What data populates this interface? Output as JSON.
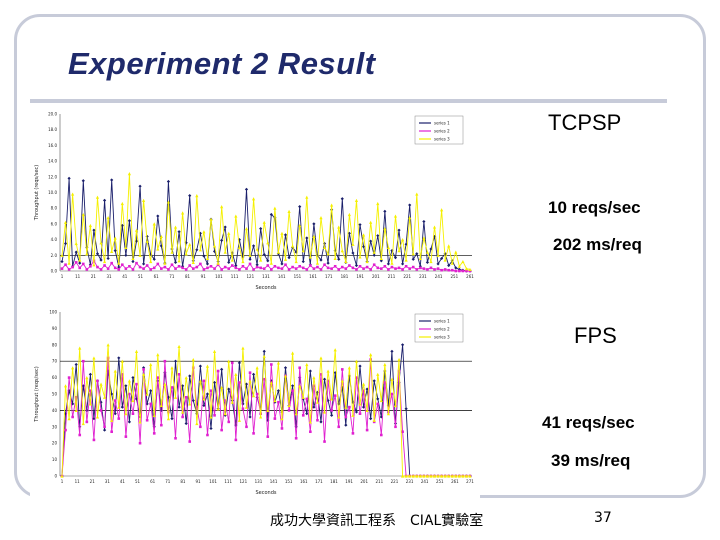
{
  "slide": {
    "title": "Experiment 2 Result",
    "footer_left": "成功大學資訊工程系　CIAL實驗室",
    "page_number": "37"
  },
  "tcpsp": {
    "label": "TCPSP",
    "throughput": "10 reqs/sec",
    "latency": "202 ms/req"
  },
  "fps": {
    "label": "FPS",
    "throughput": "41 reqs/sec",
    "latency": "39 ms/req"
  },
  "colors": {
    "title": "#1f2a6b",
    "frame": "#c7cbd9",
    "series_navy": "#1a1f6b",
    "series_magenta": "#e020d0",
    "series_yellow": "#f5f000"
  },
  "chart_data": [
    {
      "type": "line",
      "title": "",
      "xlabel": "Seconds",
      "ylabel": "Throughput (reqs/sec)",
      "ylim": [
        0,
        20
      ],
      "yticks": [
        "0.0",
        "2.0",
        "4.0",
        "6.0",
        "8.0",
        "10.0",
        "12.0",
        "14.0",
        "16.0",
        "18.0",
        "20.0"
      ],
      "xticks": [
        "1",
        "11",
        "21",
        "31",
        "41",
        "51",
        "61",
        "71",
        "81",
        "91",
        "101",
        "111",
        "121",
        "131",
        "141",
        "151",
        "161",
        "171",
        "181",
        "191",
        "201",
        "211",
        "221",
        "231",
        "241",
        "251",
        "261"
      ],
      "reference_line": 2.0,
      "series": [
        {
          "name": "series 1",
          "color": "#1a1f6b",
          "marker": "diamond",
          "values": [
            1.2,
            3.5,
            11.8,
            0.6,
            2.4,
            1.0,
            11.5,
            3.0,
            0.8,
            5.2,
            2.2,
            1.4,
            9.0,
            1.6,
            11.6,
            2.6,
            0.5,
            5.8,
            2.0,
            6.4,
            1.2,
            3.8,
            10.8,
            0.9,
            4.4,
            2.1,
            1.5,
            7.0,
            3.2,
            1.0,
            11.4,
            2.8,
            1.1,
            5.0,
            0.6,
            3.6,
            9.6,
            1.3,
            2.7,
            4.8,
            1.9,
            0.9,
            6.6,
            2.5,
            1.2,
            3.9,
            5.6,
            1.1,
            2.3,
            0.7,
            4.0,
            1.8,
            10.4,
            1.5,
            3.2,
            0.8,
            5.4,
            2.1,
            1.3,
            7.2,
            6.8,
            2.2,
            0.9,
            4.6,
            1.7,
            3.0,
            2.4,
            8.2,
            1.2,
            4.2,
            0.8,
            6.0,
            2.0,
            1.4,
            3.5,
            1.0,
            7.8,
            2.6,
            1.5,
            9.2,
            1.1,
            4.8,
            2.3,
            0.7,
            5.9,
            3.1,
            1.2,
            3.8,
            2.0,
            4.5,
            1.3,
            7.6,
            0.9,
            2.6,
            1.7,
            5.2,
            0.9,
            3.4,
            8.4,
            1.5,
            2.2,
            0.6,
            6.3,
            1.1,
            2.8,
            4.4,
            0.9,
            1.6,
            2.2,
            0.7,
            1.3,
            0.4,
            0.2,
            0.1,
            0.0,
            0.0
          ]
        },
        {
          "name": "series 2",
          "color": "#e020d0",
          "marker": "square",
          "values": [
            0.3,
            0.8,
            0.2,
            0.5,
            1.1,
            0.4,
            0.9,
            0.2,
            0.6,
            1.3,
            0.5,
            0.2,
            0.7,
            0.3,
            1.0,
            0.4,
            0.2,
            0.8,
            0.3,
            0.6,
            0.2,
            1.0,
            0.5,
            0.3,
            0.7,
            0.2,
            0.4,
            0.9,
            0.3,
            0.5,
            0.2,
            0.8,
            0.3,
            0.6,
            0.4,
            0.2,
            0.7,
            0.3,
            0.5,
            0.9,
            0.2,
            0.4,
            0.6,
            0.3,
            0.8,
            0.2,
            0.5,
            0.3,
            0.7,
            0.4,
            0.2,
            0.6,
            0.3,
            0.9,
            0.2,
            0.5,
            0.4,
            0.3,
            0.7,
            0.2,
            0.6,
            0.4,
            0.3,
            0.8,
            0.2,
            0.5,
            0.3,
            0.6,
            0.4,
            0.2,
            0.7,
            0.3,
            0.5,
            0.2,
            0.8,
            0.4,
            0.3,
            0.6,
            0.2,
            0.5,
            0.3,
            0.7,
            0.4,
            0.2,
            0.6,
            0.3,
            0.5,
            0.2,
            0.8,
            0.4,
            0.3,
            0.6,
            0.2,
            0.5,
            0.3,
            0.4,
            0.2,
            0.6,
            0.3,
            0.5,
            0.2,
            0.4,
            0.3,
            0.2,
            0.4,
            0.2,
            0.3,
            0.1,
            0.2,
            0.1,
            0.1,
            0.0,
            0.0,
            0.0,
            0.0,
            0.0
          ]
        },
        {
          "name": "series 3",
          "color": "#f5f000",
          "marker": "triangle",
          "values": [
            2.0,
            6.2,
            1.0,
            9.8,
            3.5,
            1.4,
            7.2,
            2.2,
            5.8,
            0.8,
            9.4,
            3.6,
            1.2,
            6.8,
            2.5,
            4.2,
            1.0,
            8.6,
            3.0,
            12.4,
            1.6,
            5.2,
            2.0,
            9.0,
            3.8,
            1.2,
            6.0,
            2.8,
            4.4,
            1.0,
            8.8,
            2.4,
            5.6,
            1.3,
            7.4,
            2.2,
            3.4,
            1.1,
            9.6,
            2.7,
            5.0,
            1.6,
            6.6,
            3.2,
            1.0,
            8.2,
            2.4,
            4.8,
            1.4,
            7.0,
            3.0,
            1.2,
            5.4,
            2.0,
            9.2,
            2.8,
            1.4,
            6.2,
            3.6,
            1.0,
            8.0,
            2.4,
            4.8,
            1.5,
            7.6,
            3.2,
            1.2,
            5.8,
            2.6,
            9.4,
            1.8,
            4.4,
            1.0,
            6.8,
            3.0,
            2.2,
            8.4,
            1.6,
            5.6,
            2.6,
            1.2,
            7.2,
            3.4,
            9.0,
            1.8,
            4.6,
            1.2,
            6.2,
            2.4,
            8.6,
            1.6,
            5.4,
            3.0,
            1.0,
            7.0,
            2.6,
            4.0,
            1.4,
            6.8,
            2.2,
            9.8,
            1.6,
            4.2,
            2.4,
            1.2,
            5.6,
            2.0,
            7.8,
            1.4,
            3.2,
            1.0,
            2.4,
            0.6,
            1.2,
            0.3,
            0.2
          ]
        }
      ]
    },
    {
      "type": "line",
      "title": "",
      "xlabel": "Seconds",
      "ylabel": "Throughput (reqs/sec)",
      "ylim": [
        0,
        100
      ],
      "yticks": [
        "0",
        "10",
        "20",
        "30",
        "40",
        "50",
        "60",
        "70",
        "80",
        "90",
        "100"
      ],
      "xticks": [
        "1",
        "11",
        "21",
        "31",
        "41",
        "51",
        "61",
        "71",
        "81",
        "91",
        "101",
        "111",
        "121",
        "131",
        "141",
        "151",
        "161",
        "171",
        "181",
        "191",
        "201",
        "211",
        "221",
        "231",
        "241",
        "251",
        "261",
        "271"
      ],
      "reference_lines": [
        40,
        70
      ],
      "series": [
        {
          "name": "series 1",
          "color": "#1a1f6b",
          "marker": "diamond",
          "values": [
            0,
            38,
            52,
            44,
            68,
            30,
            55,
            40,
            62,
            35,
            58,
            45,
            28,
            64,
            50,
            38,
            72,
            42,
            55,
            33,
            60,
            47,
            36,
            66,
            44,
            52,
            30,
            58,
            40,
            63,
            48,
            35,
            70,
            42,
            55,
            32,
            61,
            46,
            38,
            67,
            43,
            50,
            29,
            57,
            41,
            65,
            37,
            53,
            46,
            31,
            69,
            44,
            56,
            36,
            62,
            48,
            40,
            76,
            34,
            58,
            45,
            52,
            39,
            66,
            43,
            55,
            30,
            60,
            47,
            38,
            64,
            42,
            51,
            33,
            59,
            46,
            37,
            63,
            44,
            54,
            31,
            61,
            45,
            39,
            67,
            42,
            53,
            35,
            58,
            47,
            36,
            64,
            43,
            76,
            32,
            57,
            80,
            41,
            0,
            0,
            0,
            0,
            0,
            0,
            0,
            0,
            0,
            0,
            0,
            0,
            0,
            0,
            0,
            0,
            0,
            0
          ]
        },
        {
          "name": "series 2",
          "color": "#e020d0",
          "marker": "square",
          "values": [
            0,
            28,
            60,
            36,
            48,
            25,
            70,
            33,
            52,
            22,
            58,
            40,
            30,
            72,
            27,
            46,
            35,
            62,
            24,
            50,
            38,
            56,
            20,
            65,
            34,
            44,
            26,
            60,
            31,
            70,
            39,
            54,
            23,
            62,
            36,
            48,
            21,
            66,
            42,
            30,
            58,
            25,
            52,
            37,
            64,
            28,
            46,
            33,
            69,
            22,
            57,
            41,
            30,
            63,
            26,
            50,
            38,
            59,
            24,
            68,
            35,
            45,
            29,
            61,
            40,
            52,
            23,
            66,
            37,
            47,
            27,
            55,
            34,
            62,
            21,
            58,
            40,
            49,
            30,
            65,
            36,
            42,
            26,
            60,
            38,
            52,
            28,
            71,
            33,
            44,
            25,
            57,
            39,
            50,
            30,
            64,
            27,
            0,
            0,
            0,
            0,
            0,
            0,
            0,
            0,
            0,
            0,
            0,
            0,
            0,
            0,
            0,
            0,
            0,
            0,
            0
          ]
        },
        {
          "name": "series 3",
          "color": "#f5f000",
          "marker": "triangle",
          "values": [
            0,
            55,
            35,
            66,
            40,
            78,
            32,
            60,
            44,
            72,
            36,
            56,
            48,
            80,
            34,
            64,
            42,
            70,
            38,
            58,
            46,
            76,
            33,
            62,
            50,
            68,
            37,
            74,
            43,
            56,
            35,
            66,
            48,
            79,
            39,
            60,
            44,
            71,
            32,
            58,
            47,
            67,
            36,
            76,
            41,
            54,
            38,
            70,
            45,
            62,
            34,
            78,
            42,
            58,
            49,
            66,
            36,
            73,
            40,
            57,
            46,
            69,
            35,
            61,
            43,
            75,
            38,
            55,
            48,
            68,
            33,
            60,
            45,
            72,
            39,
            64,
            47,
            77,
            36,
            58,
            42,
            66,
            37,
            70,
            44,
            56,
            40,
            74,
            34,
            62,
            46,
            68,
            38,
            59,
            43,
            71,
            0,
            0,
            0,
            0,
            0,
            0,
            0,
            0,
            0,
            0,
            0,
            0,
            0,
            0,
            0,
            0,
            0,
            0,
            0,
            0
          ]
        }
      ]
    }
  ]
}
